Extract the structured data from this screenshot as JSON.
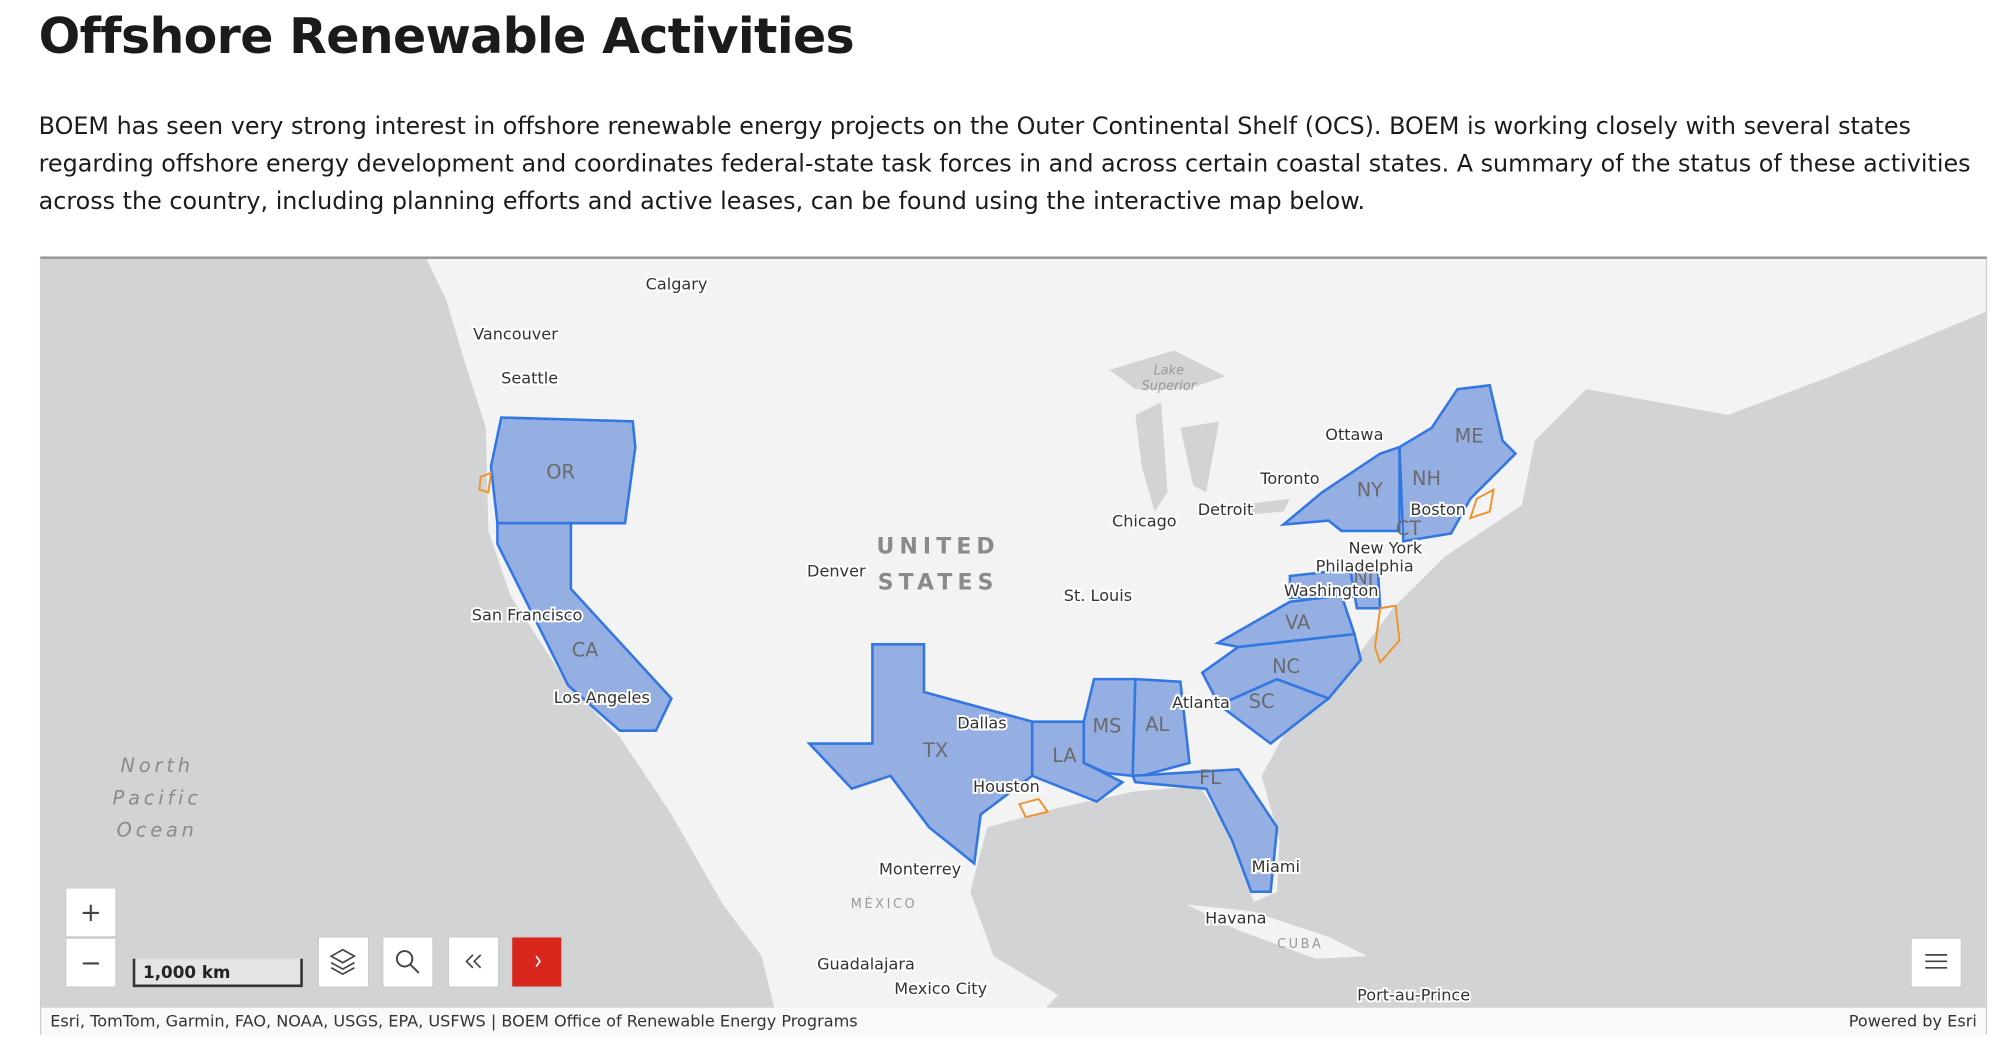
{
  "header": {
    "title": "Offshore Renewable Activities"
  },
  "intro": "BOEM has seen very strong interest in offshore renewable energy projects on the Outer Continental Shelf (OCS). BOEM is working closely with several states regarding offshore energy development and coordinates federal-state task forces in and across certain coastal states. A summary of the status of these activities across the country, including planning efforts and active leases, can be found using the interactive map below.",
  "map": {
    "cities": [
      "Calgary",
      "Vancouver",
      "Seattle",
      "Ottawa",
      "Toronto",
      "Detroit",
      "Chicago",
      "Boston",
      "New York",
      "Philadelphia",
      "Washington",
      "Denver",
      "St. Louis",
      "San Francisco",
      "Los Angeles",
      "Dallas",
      "Houston",
      "Atlanta",
      "Miami",
      "Monterrey",
      "Havana",
      "Guadalajara",
      "Mexico City",
      "Port-au-Prince"
    ],
    "states": [
      "OR",
      "CA",
      "TX",
      "LA",
      "MS",
      "AL",
      "FL",
      "SC",
      "NC",
      "VA",
      "NJ",
      "NY",
      "CT",
      "NH",
      "ME"
    ],
    "country_labels": [
      "UNITED",
      "STATES"
    ],
    "ocean_labels": [
      "North",
      "Pacific",
      "Ocean"
    ],
    "minor_labels": [
      "MÉXICO",
      "CUBA",
      "Lake",
      "Superior"
    ],
    "zoom_in": "+",
    "zoom_out": "−",
    "scale_bar": "1,000 km",
    "attribution": "Esri, TomTom, Garmin, FAO, NOAA, USGS, EPA, USFWS | BOEM Office of Renewable Energy Programs",
    "powered_by": "Powered by Esri"
  }
}
